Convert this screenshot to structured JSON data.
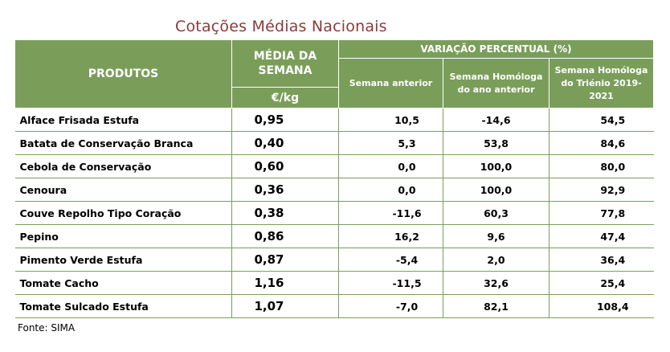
{
  "title": "Cotações Médias Nacionais",
  "header": {
    "produtos": "PRODUTOS",
    "media_semana": "MÉDIA DA SEMANA",
    "unit": "€/kg",
    "variacao": "VARIAÇÃO PERCENTUAL (%)",
    "semana_anterior": "Semana anterior",
    "homologa_ano": "Semana Homóloga do ano anterior",
    "homologa_trienio": "Semana Homóloga do Triénio 2019-2021"
  },
  "rows": [
    {
      "produto": "Alface Frisada Estufa",
      "media": "0,95",
      "semana_anterior": "10,5",
      "ano_anterior": "-14,6",
      "trienio": "54,5"
    },
    {
      "produto": "Batata de Conservação Branca",
      "media": "0,40",
      "semana_anterior": "5,3",
      "ano_anterior": "53,8",
      "trienio": "84,6"
    },
    {
      "produto": "Cebola de Conservação",
      "media": "0,60",
      "semana_anterior": "0,0",
      "ano_anterior": "100,0",
      "trienio": "80,0"
    },
    {
      "produto": "Cenoura",
      "media": "0,36",
      "semana_anterior": "0,0",
      "ano_anterior": "100,0",
      "trienio": "92,9"
    },
    {
      "produto": "Couve Repolho Tipo Coração",
      "media": "0,38",
      "semana_anterior": "-11,6",
      "ano_anterior": "60,3",
      "trienio": "77,8"
    },
    {
      "produto": "Pepino",
      "media": "0,86",
      "semana_anterior": "16,2",
      "ano_anterior": "9,6",
      "trienio": "47,4"
    },
    {
      "produto": "Pimento Verde Estufa",
      "media": "0,87",
      "semana_anterior": "-5,4",
      "ano_anterior": "2,0",
      "trienio": "36,4"
    },
    {
      "produto": "Tomate Cacho",
      "media": "1,16",
      "semana_anterior": "-11,5",
      "ano_anterior": "32,6",
      "trienio": "25,4"
    },
    {
      "produto": "Tomate Sulcado Estufa",
      "media": "1,07",
      "semana_anterior": "-7,0",
      "ano_anterior": "82,1",
      "trienio": "108,4"
    }
  ],
  "fonte": "Fonte: SIMA"
}
